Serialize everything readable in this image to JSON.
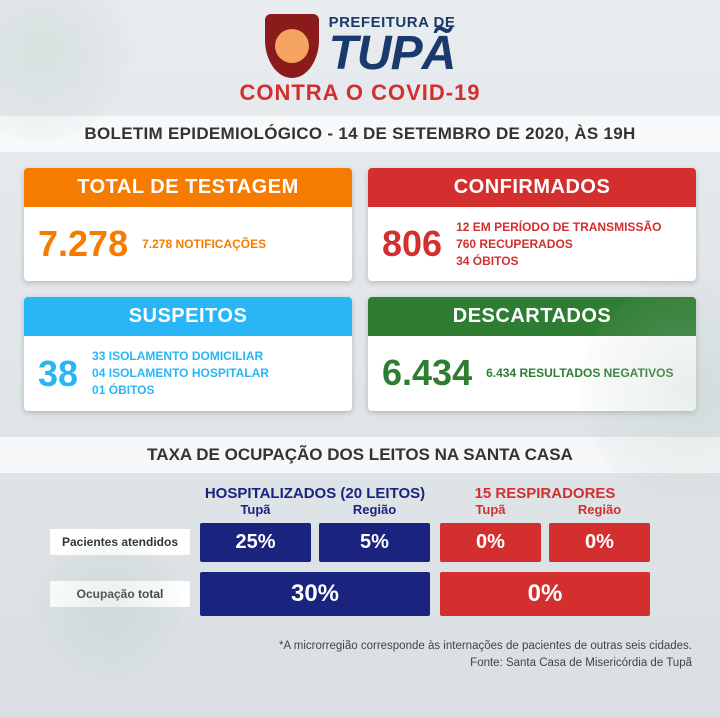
{
  "header": {
    "prefeitura": "PREFEITURA DE",
    "city": "TUPÃ",
    "slogan": "CONTRA O COVID-19"
  },
  "bulletin_title": "BOLETIM EPIDEMIOLÓGICO - 14 DE SETEMBRO DE 2020, ÀS 19H",
  "cards": {
    "testagem": {
      "title": "TOTAL DE TESTAGEM",
      "number": "7.278",
      "details": [
        "7.278 NOTIFICAÇÕES"
      ]
    },
    "confirmados": {
      "title": "CONFIRMADOS",
      "number": "806",
      "details": [
        "12 EM PERÍODO DE TRANSMISSÃO",
        "760 RECUPERADOS",
        "34 ÓBITOS"
      ]
    },
    "suspeitos": {
      "title": "SUSPEITOS",
      "number": "38",
      "details": [
        "33 ISOLAMENTO DOMICILIAR",
        "04 ISOLAMENTO HOSPITALAR",
        "01 ÓBITOS"
      ]
    },
    "descartados": {
      "title": "DESCARTADOS",
      "number": "6.434",
      "details": [
        "6.434 RESULTADOS NEGATIVOS"
      ]
    }
  },
  "occupancy": {
    "title": "TAXA DE OCUPAÇÃO DOS LEITOS NA SANTA CASA",
    "hosp_title": "HOSPITALIZADOS (20 LEITOS)",
    "resp_title": "15 RESPIRADORES",
    "sub_tupa": "Tupã",
    "sub_regiao": "Região",
    "row1_label": "Pacientes atendidos",
    "row2_label": "Ocupação total",
    "hosp_tupa": "25%",
    "hosp_regiao": "5%",
    "hosp_total": "30%",
    "resp_tupa": "0%",
    "resp_regiao": "0%",
    "resp_total": "0%"
  },
  "footnote": {
    "line1": "*A microrregião corresponde às internações de pacientes de outras seis cidades.",
    "line2": "Fonte: Santa Casa de Misericórdia de Tupã"
  },
  "colors": {
    "orange": "#f57c00",
    "red": "#d32f2f",
    "blue": "#29b6f6",
    "green": "#2e7d32",
    "navy": "#1a237e"
  }
}
